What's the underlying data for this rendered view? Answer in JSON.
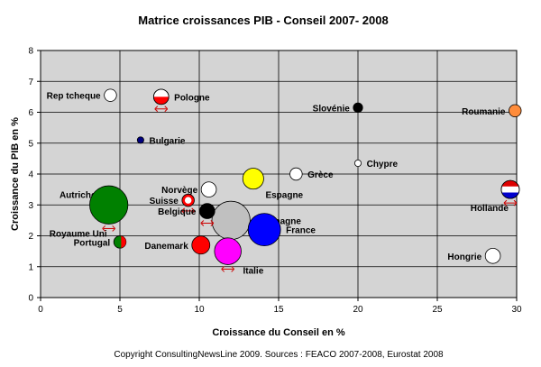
{
  "chart_data": {
    "type": "scatter",
    "title": "Matrice croissances  PIB - Conseil  2007- 2008",
    "xlabel": "Croissance du Conseil en %",
    "ylabel": "Croissance du PIB en %",
    "xlim": [
      0,
      30
    ],
    "ylim": [
      0,
      8
    ],
    "xticks": [
      "0",
      "5",
      "10",
      "15",
      "20",
      "25",
      "30"
    ],
    "yticks": [
      "0",
      "1",
      "2",
      "3",
      "4",
      "5",
      "6",
      "7",
      "8"
    ],
    "grid": true,
    "points": [
      {
        "label": "Rep tcheque",
        "x": 4.4,
        "y": 6.55,
        "size": 3,
        "color": "#ffffff",
        "style": "plain",
        "label_anchor": "left"
      },
      {
        "label": "Pologne",
        "x": 7.6,
        "y": 6.5,
        "size": 4,
        "color": "#ffffff",
        "style": "flag-pl",
        "arrow": true,
        "label_anchor": "right"
      },
      {
        "label": "Bulgarie",
        "x": 6.3,
        "y": 5.1,
        "size": 1,
        "color": "#000080",
        "style": "plain",
        "label_anchor": "right"
      },
      {
        "label": "Slovénie",
        "x": 20,
        "y": 6.15,
        "size": 2,
        "color": "#000000",
        "style": "plain",
        "label_anchor": "left"
      },
      {
        "label": "Roumanie",
        "x": 29.9,
        "y": 6.05,
        "size": 3,
        "color": "#ff8c3a",
        "style": "plain",
        "label_anchor": "left"
      },
      {
        "label": "Grèce",
        "x": 16.1,
        "y": 4.0,
        "size": 3,
        "color": "#ffffff",
        "style": "plain",
        "label_anchor": "right"
      },
      {
        "label": "Chypre",
        "x": 20,
        "y": 4.35,
        "size": 1,
        "color": "#ffffff",
        "style": "plain",
        "label_anchor": "right"
      },
      {
        "label": "Espagne",
        "x": 13.4,
        "y": 3.85,
        "size": 6,
        "color": "#ffff00",
        "style": "plain",
        "label_anchor": "right-below"
      },
      {
        "label": "Autriche",
        "x": 4.2,
        "y": 3.35,
        "size": 4,
        "color": "#c0c0c0",
        "style": "plain",
        "label_anchor": "left"
      },
      {
        "label": "Royaume Uni",
        "x": 4.3,
        "y": 3.0,
        "size": 12,
        "color": "#008000",
        "style": "plain",
        "arrow": true,
        "label_anchor": "below-left"
      },
      {
        "label": "Norvège",
        "x": 10.6,
        "y": 3.5,
        "size": 4,
        "color": "#ffffff",
        "style": "plain",
        "label_anchor": "left"
      },
      {
        "label": "Suisse",
        "x": 9.3,
        "y": 3.15,
        "size": 3,
        "color": "#ffffff",
        "style": "flag-ch",
        "arrow": true,
        "label_anchor": "left"
      },
      {
        "label": "Allemagne",
        "x": 12.0,
        "y": 2.5,
        "size": 12,
        "color": "#c0c0c0",
        "style": "plain",
        "label_anchor": "right"
      },
      {
        "label": "Belgique",
        "x": 10.5,
        "y": 2.8,
        "size": 4,
        "color": "#000000",
        "style": "plain",
        "arrow": true,
        "label_anchor": "left"
      },
      {
        "label": "France",
        "x": 14.1,
        "y": 2.2,
        "size": 10,
        "color": "#0000ff",
        "style": "plain",
        "label_anchor": "right"
      },
      {
        "label": "Portugal",
        "x": 5.0,
        "y": 1.8,
        "size": 3,
        "color": "#008000",
        "style": "flag-pt",
        "label_anchor": "left"
      },
      {
        "label": "Danemark",
        "x": 10.1,
        "y": 1.7,
        "size": 5,
        "color": "#ff0000",
        "style": "plain",
        "label_anchor": "left"
      },
      {
        "label": "Italie",
        "x": 11.8,
        "y": 1.5,
        "size": 8,
        "color": "#ff00ff",
        "style": "plain",
        "arrow": true,
        "label_anchor": "right-below"
      },
      {
        "label": "Hollande",
        "x": 29.6,
        "y": 3.5,
        "size": 5,
        "color": "#ffffff",
        "style": "flag-nl",
        "arrow": true,
        "label_anchor": "below-left"
      },
      {
        "label": "Hongrie",
        "x": 28.5,
        "y": 1.35,
        "size": 4,
        "color": "#ffffff",
        "style": "plain",
        "label_anchor": "left"
      }
    ],
    "footer": "Copyright ConsultingNewsLine 2009.  Sources : FEACO 2007-2008, Eurostat 2008"
  }
}
